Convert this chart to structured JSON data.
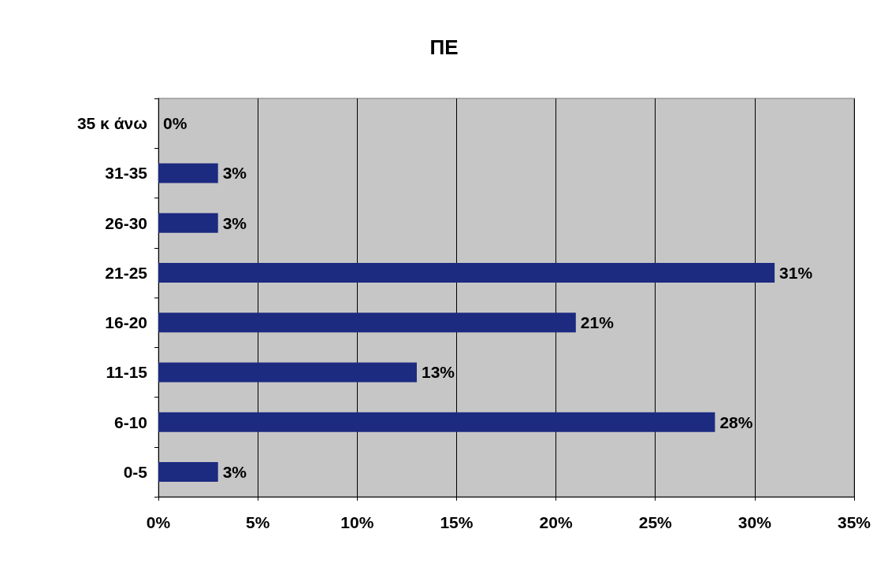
{
  "chart_data": {
    "type": "bar",
    "orientation": "horizontal",
    "title": "ΠΕ",
    "categories": [
      "35 κ άνω",
      "31-35",
      "26-30",
      "21-25",
      "16-20",
      "11-15",
      "6-10",
      "0-5"
    ],
    "values": [
      0,
      3,
      3,
      31,
      21,
      13,
      28,
      3
    ],
    "value_labels": [
      "0%",
      "3%",
      "3%",
      "31%",
      "21%",
      "13%",
      "28%",
      "3%"
    ],
    "color": "#1c2a80",
    "xlim": [
      0,
      35
    ],
    "xticks": [
      {
        "value": 0,
        "label": "0%"
      },
      {
        "value": 5,
        "label": "5%"
      },
      {
        "value": 10,
        "label": "10%"
      },
      {
        "value": 15,
        "label": "15%"
      },
      {
        "value": 20,
        "label": "20%"
      },
      {
        "value": 25,
        "label": "25%"
      },
      {
        "value": 30,
        "label": "30%"
      },
      {
        "value": 35,
        "label": "35%"
      }
    ],
    "grid": "x"
  }
}
